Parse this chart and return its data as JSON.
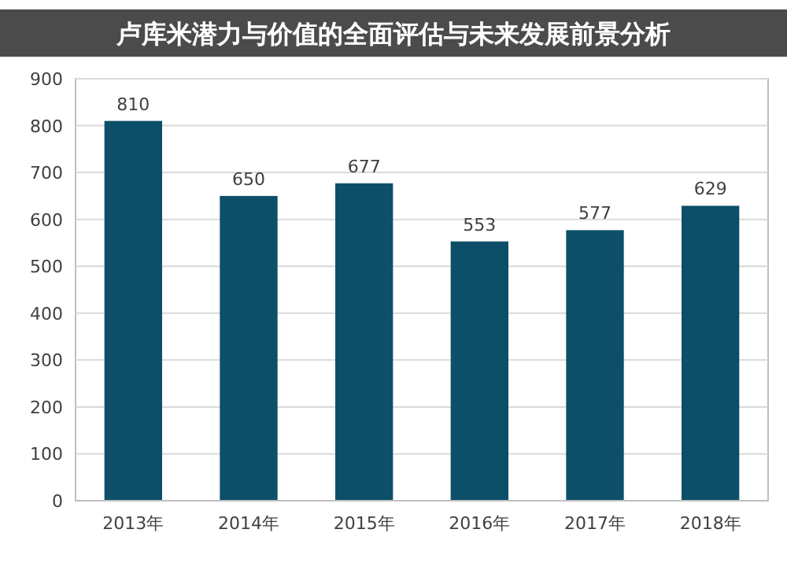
{
  "chart_data": {
    "type": "bar",
    "title": "卢库米潜力与价值的全面评估与未来发展前景分析",
    "categories": [
      "2013年",
      "2014年",
      "2015年",
      "2016年",
      "2017年",
      "2018年"
    ],
    "values": [
      810,
      650,
      677,
      553,
      577,
      629
    ],
    "color": "#0d4f69",
    "ylim": [
      0,
      900
    ],
    "yticks": [
      0,
      100,
      200,
      300,
      400,
      500,
      600,
      700,
      800,
      900
    ],
    "grid": "y",
    "data_labels": true
  }
}
